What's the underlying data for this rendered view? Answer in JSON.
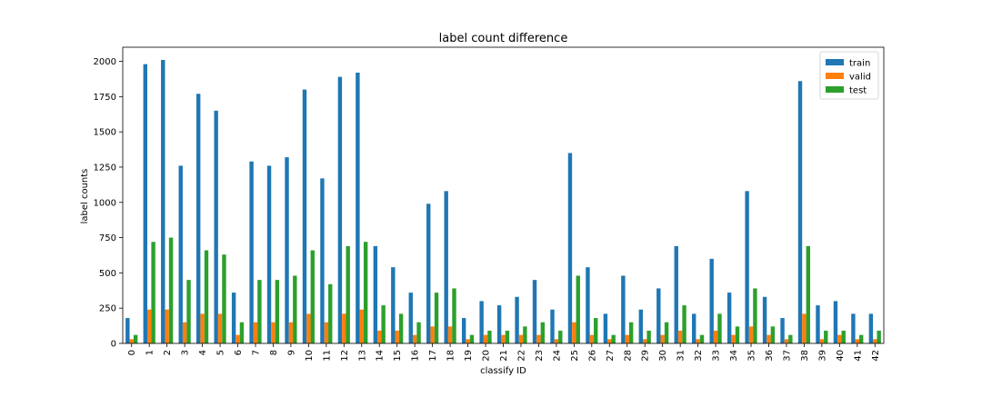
{
  "chart_data": {
    "type": "bar",
    "title": "label count difference",
    "xlabel": "classify ID",
    "ylabel": "label counts",
    "ylim": [
      0,
      2100
    ],
    "yticks": [
      0,
      250,
      500,
      750,
      1000,
      1250,
      1500,
      1750,
      2000
    ],
    "grid": false,
    "legend_position": "top-right",
    "categories": [
      "0",
      "1",
      "2",
      "3",
      "4",
      "5",
      "6",
      "7",
      "8",
      "9",
      "10",
      "11",
      "12",
      "13",
      "14",
      "15",
      "16",
      "17",
      "18",
      "19",
      "20",
      "21",
      "22",
      "23",
      "24",
      "25",
      "26",
      "27",
      "28",
      "29",
      "30",
      "31",
      "32",
      "33",
      "34",
      "35",
      "36",
      "37",
      "38",
      "39",
      "40",
      "41",
      "42"
    ],
    "series": [
      {
        "name": "train",
        "color": "#1f77b4",
        "values": [
          180,
          1980,
          2010,
          1260,
          1770,
          1650,
          360,
          1290,
          1260,
          1320,
          1800,
          1170,
          1890,
          1920,
          690,
          540,
          360,
          990,
          1080,
          180,
          300,
          270,
          330,
          450,
          240,
          1350,
          540,
          210,
          480,
          240,
          390,
          690,
          210,
          600,
          360,
          1080,
          330,
          180,
          1860,
          270,
          300,
          210,
          210
        ]
      },
      {
        "name": "valid",
        "color": "#ff7f0e",
        "values": [
          30,
          240,
          240,
          150,
          210,
          210,
          60,
          150,
          150,
          150,
          210,
          150,
          210,
          240,
          90,
          90,
          60,
          120,
          120,
          30,
          60,
          60,
          60,
          60,
          30,
          150,
          60,
          30,
          60,
          30,
          60,
          90,
          30,
          90,
          60,
          120,
          60,
          30,
          210,
          30,
          60,
          30,
          30
        ]
      },
      {
        "name": "test",
        "color": "#2ca02c",
        "values": [
          60,
          720,
          750,
          450,
          660,
          630,
          150,
          450,
          450,
          480,
          660,
          420,
          690,
          720,
          270,
          210,
          150,
          360,
          390,
          60,
          90,
          90,
          120,
          150,
          90,
          480,
          180,
          60,
          150,
          90,
          150,
          270,
          60,
          210,
          120,
          390,
          120,
          60,
          690,
          90,
          90,
          60,
          90
        ]
      }
    ]
  }
}
